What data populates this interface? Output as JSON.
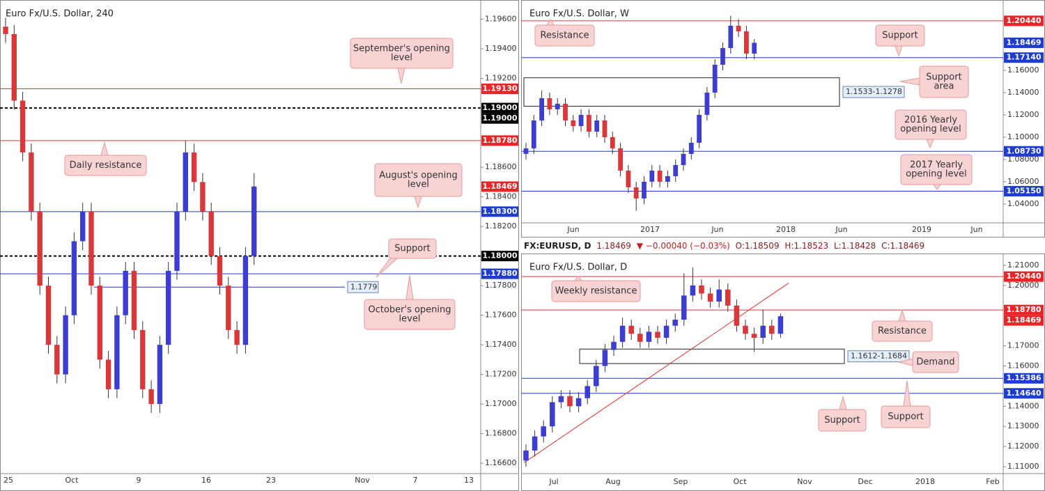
{
  "chart_data": [
    {
      "type": "candlestick",
      "title": "Euro Fx/U.S. Dollar, 240",
      "up_color": "#3d3dd1",
      "down_color": "#d9373a",
      "ylim": [
        1.1653,
        1.1973
      ],
      "yticks": [
        {
          "value": 1.196,
          "label": "1.19600"
        },
        {
          "value": 1.194,
          "label": "1.19400"
        },
        {
          "value": 1.192,
          "label": "1.19200"
        },
        {
          "value": 1.186,
          "label": "1.18600"
        },
        {
          "value": 1.184,
          "label": "1.18400"
        },
        {
          "value": 1.182,
          "label": "1.18200"
        },
        {
          "value": 1.178,
          "label": "1.17800"
        },
        {
          "value": 1.176,
          "label": "1.17600"
        },
        {
          "value": 1.174,
          "label": "1.17400"
        },
        {
          "value": 1.172,
          "label": "1.17200"
        },
        {
          "value": 1.17,
          "label": "1.17000"
        },
        {
          "value": 1.168,
          "label": "1.16800"
        },
        {
          "value": 1.166,
          "label": "1.16600"
        }
      ],
      "xlabels": [
        "25",
        "Oct",
        "9",
        "16",
        "23",
        "Nov",
        "7",
        "13"
      ],
      "ohlc": [
        [
          1.1955,
          1.1961,
          1.1944,
          1.195
        ],
        [
          1.195,
          1.1956,
          1.1899,
          1.1905
        ],
        [
          1.1905,
          1.1911,
          1.1864,
          1.187
        ],
        [
          1.187,
          1.1876,
          1.1824,
          1.183
        ],
        [
          1.183,
          1.1836,
          1.1774,
          1.178
        ],
        [
          1.178,
          1.1786,
          1.1734,
          1.174
        ],
        [
          1.174,
          1.1746,
          1.1714,
          1.172
        ],
        [
          1.172,
          1.1766,
          1.1714,
          1.176
        ],
        [
          1.176,
          1.1816,
          1.1754,
          1.181
        ],
        [
          1.181,
          1.1836,
          1.1804,
          1.183
        ],
        [
          1.183,
          1.1836,
          1.1774,
          1.178
        ],
        [
          1.178,
          1.1786,
          1.1724,
          1.173
        ],
        [
          1.173,
          1.1736,
          1.1704,
          1.171
        ],
        [
          1.171,
          1.1766,
          1.1704,
          1.176
        ],
        [
          1.176,
          1.1796,
          1.1754,
          1.179
        ],
        [
          1.179,
          1.1796,
          1.1744,
          1.175
        ],
        [
          1.175,
          1.1756,
          1.1704,
          1.171
        ],
        [
          1.171,
          1.1716,
          1.1694,
          1.17
        ],
        [
          1.17,
          1.1746,
          1.1694,
          1.174
        ],
        [
          1.174,
          1.1796,
          1.1734,
          1.179
        ],
        [
          1.179,
          1.1836,
          1.1784,
          1.183
        ],
        [
          1.183,
          1.1878,
          1.1824,
          1.187
        ],
        [
          1.187,
          1.1876,
          1.1844,
          1.185
        ],
        [
          1.185,
          1.1856,
          1.1824,
          1.183
        ],
        [
          1.183,
          1.1836,
          1.1794,
          1.18
        ],
        [
          1.18,
          1.1806,
          1.1774,
          1.178
        ],
        [
          1.178,
          1.1786,
          1.1744,
          1.175
        ],
        [
          1.175,
          1.1756,
          1.1734,
          1.174
        ],
        [
          1.174,
          1.1806,
          1.1734,
          1.18
        ],
        [
          1.18,
          1.1856,
          1.1794,
          1.1847
        ]
      ],
      "levels": [
        {
          "value": 1.1913,
          "color": "#d9373a"
        },
        {
          "value": 1.19,
          "color": "#000000",
          "dashed": true
        },
        {
          "value": 1.1878,
          "color": "#d9373a"
        },
        {
          "value": 1.183,
          "color": "#2336c8"
        },
        {
          "value": 1.18,
          "color": "#000000",
          "dashed": true
        },
        {
          "value": 1.1788,
          "color": "#2336c8"
        }
      ],
      "segments": [
        {
          "value": 1.1779,
          "label": "1.1779",
          "color": "#2336c8"
        }
      ],
      "tags": [
        {
          "value": 1.1913,
          "label": "1.19130",
          "color": "#e8262a"
        },
        {
          "value": 1.19,
          "label": "1.19000",
          "color": "#000000"
        },
        {
          "value": 1.19,
          "label": "1.19000",
          "color": "#000000"
        },
        {
          "value": 1.1878,
          "label": "1.18780",
          "color": "#e8262a"
        },
        {
          "value": 1.18469,
          "label": "1.18469",
          "color": "#e8262a"
        },
        {
          "value": 1.183,
          "label": "1.18300",
          "color": "#1e3cd0"
        },
        {
          "value": 1.18,
          "label": "1.18000",
          "color": "#000000"
        },
        {
          "value": 1.1788,
          "label": "1.17880",
          "color": "#1e3cd0"
        }
      ],
      "annotations": [
        {
          "lines": [
            "September's opening",
            "level"
          ]
        },
        {
          "lines": [
            "Daily resistance"
          ]
        },
        {
          "lines": [
            "August's opening",
            "level"
          ]
        },
        {
          "lines": [
            "Support"
          ]
        },
        {
          "lines": [
            "October's opening",
            "level"
          ]
        }
      ]
    },
    {
      "type": "candlestick",
      "title": "Euro Fx/U.S. Dollar, W",
      "up_color": "#3d3dd1",
      "down_color": "#d9373a",
      "ylim": [
        1.0231,
        1.2231
      ],
      "yticks": [
        {
          "value": 1.16,
          "label": "1.16000"
        },
        {
          "value": 1.14,
          "label": "1.14000"
        },
        {
          "value": 1.12,
          "label": "1.12000"
        },
        {
          "value": 1.1,
          "label": "1.10000"
        },
        {
          "value": 1.08,
          "label": "1.08000"
        },
        {
          "value": 1.06,
          "label": "1.06000"
        },
        {
          "value": 1.04,
          "label": "1.04000"
        }
      ],
      "xlabels": [
        "Jun",
        "2017",
        "Jun",
        "2018",
        "Jun",
        "2019",
        "Jun"
      ],
      "ohlc": [
        [
          1.085,
          1.095,
          1.08,
          1.09
        ],
        [
          1.09,
          1.12,
          1.085,
          1.115
        ],
        [
          1.115,
          1.142,
          1.11,
          1.135
        ],
        [
          1.135,
          1.14,
          1.12,
          1.125
        ],
        [
          1.125,
          1.135,
          1.12,
          1.13
        ],
        [
          1.13,
          1.135,
          1.11,
          1.115
        ],
        [
          1.115,
          1.12,
          1.105,
          1.11
        ],
        [
          1.11,
          1.125,
          1.105,
          1.12
        ],
        [
          1.12,
          1.125,
          1.1,
          1.105
        ],
        [
          1.105,
          1.12,
          1.1,
          1.115
        ],
        [
          1.115,
          1.12,
          1.095,
          1.1
        ],
        [
          1.1,
          1.105,
          1.085,
          1.09
        ],
        [
          1.09,
          1.095,
          1.065,
          1.07
        ],
        [
          1.07,
          1.075,
          1.05,
          1.055
        ],
        [
          1.055,
          1.06,
          1.034,
          1.045
        ],
        [
          1.045,
          1.065,
          1.04,
          1.06
        ],
        [
          1.06,
          1.075,
          1.055,
          1.07
        ],
        [
          1.07,
          1.075,
          1.055,
          1.06
        ],
        [
          1.06,
          1.07,
          1.055,
          1.065
        ],
        [
          1.065,
          1.08,
          1.06,
          1.075
        ],
        [
          1.075,
          1.09,
          1.07,
          1.085
        ],
        [
          1.085,
          1.1,
          1.08,
          1.095
        ],
        [
          1.095,
          1.125,
          1.09,
          1.12
        ],
        [
          1.12,
          1.145,
          1.115,
          1.14
        ],
        [
          1.14,
          1.17,
          1.135,
          1.165
        ],
        [
          1.165,
          1.185,
          1.16,
          1.18
        ],
        [
          1.18,
          1.209,
          1.175,
          1.2
        ],
        [
          1.2,
          1.206,
          1.19,
          1.195
        ],
        [
          1.195,
          1.2,
          1.17,
          1.175
        ],
        [
          1.175,
          1.188,
          1.17,
          1.1847
        ]
      ],
      "levels": [
        {
          "value": 1.2044,
          "color": "#d9373a"
        },
        {
          "value": 1.1714,
          "color": "#2336c8"
        },
        {
          "value": 1.0873,
          "color": "#2336c8"
        },
        {
          "value": 1.0515,
          "color": "#2336c8"
        }
      ],
      "zones": [
        {
          "top": 1.1533,
          "bottom": 1.1278,
          "label": "1.1533-1.1278"
        }
      ],
      "tags": [
        {
          "value": 1.2044,
          "label": "1.20440",
          "color": "#e8262a"
        },
        {
          "value": 1.18469,
          "label": "1.18469",
          "color": "#1e3cd0"
        },
        {
          "value": 1.1714,
          "label": "1.17140",
          "color": "#1e3cd0"
        },
        {
          "value": 1.0873,
          "label": "1.08730",
          "color": "#1e3cd0"
        },
        {
          "value": 1.0515,
          "label": "1.05150",
          "color": "#1e3cd0"
        }
      ],
      "annotations": [
        {
          "lines": [
            "Resistance"
          ]
        },
        {
          "lines": [
            "Support"
          ]
        },
        {
          "lines": [
            "Support",
            "area"
          ]
        },
        {
          "lines": [
            "2016 Yearly",
            "opening level"
          ]
        },
        {
          "lines": [
            "2017 Yearly",
            "opening level"
          ]
        }
      ]
    },
    {
      "type": "candlestick",
      "title": "Euro Fx/U.S. Dollar, D",
      "up_color": "#3d3dd1",
      "down_color": "#d9373a",
      "ylim": [
        1.10654,
        1.2138
      ],
      "yticks": [
        {
          "value": 1.21,
          "label": "1.21000"
        },
        {
          "value": 1.2,
          "label": "1.20000"
        },
        {
          "value": 1.17,
          "label": "1.17000"
        },
        {
          "value": 1.16,
          "label": "1.16000"
        },
        {
          "value": 1.14,
          "label": "1.14000"
        },
        {
          "value": 1.13,
          "label": "1.13000"
        },
        {
          "value": 1.12,
          "label": "1.12000"
        },
        {
          "value": 1.11,
          "label": "1.11000"
        }
      ],
      "xlabels": [
        "Jul",
        "Aug",
        "Sep",
        "Oct",
        "Nov",
        "Dec",
        "2018",
        "Feb"
      ],
      "ohlc": [
        [
          1.113,
          1.121,
          1.11,
          1.118
        ],
        [
          1.118,
          1.128,
          1.115,
          1.125
        ],
        [
          1.125,
          1.133,
          1.122,
          1.13
        ],
        [
          1.13,
          1.145,
          1.127,
          1.142
        ],
        [
          1.142,
          1.148,
          1.139,
          1.145
        ],
        [
          1.145,
          1.148,
          1.137,
          1.14
        ],
        [
          1.14,
          1.147,
          1.137,
          1.144
        ],
        [
          1.144,
          1.153,
          1.141,
          1.15
        ],
        [
          1.15,
          1.163,
          1.147,
          1.16
        ],
        [
          1.16,
          1.171,
          1.157,
          1.168
        ],
        [
          1.168,
          1.175,
          1.165,
          1.172
        ],
        [
          1.172,
          1.184,
          1.169,
          1.18
        ],
        [
          1.18,
          1.183,
          1.173,
          1.176
        ],
        [
          1.176,
          1.179,
          1.169,
          1.172
        ],
        [
          1.172,
          1.18,
          1.169,
          1.177
        ],
        [
          1.177,
          1.18,
          1.171,
          1.174
        ],
        [
          1.174,
          1.183,
          1.171,
          1.18
        ],
        [
          1.18,
          1.186,
          1.177,
          1.183
        ],
        [
          1.183,
          1.206,
          1.18,
          1.195
        ],
        [
          1.195,
          1.209,
          1.192,
          1.2
        ],
        [
          1.2,
          1.203,
          1.193,
          1.196
        ],
        [
          1.196,
          1.199,
          1.189,
          1.192
        ],
        [
          1.192,
          1.203,
          1.189,
          1.198
        ],
        [
          1.198,
          1.201,
          1.187,
          1.19
        ],
        [
          1.19,
          1.193,
          1.177,
          1.18
        ],
        [
          1.18,
          1.183,
          1.173,
          1.176
        ],
        [
          1.176,
          1.179,
          1.167,
          1.174
        ],
        [
          1.174,
          1.188,
          1.171,
          1.18
        ],
        [
          1.18,
          1.183,
          1.173,
          1.176
        ],
        [
          1.176,
          1.186,
          1.174,
          1.1847
        ]
      ],
      "levels": [
        {
          "value": 1.2044,
          "color": "#d9373a"
        },
        {
          "value": 1.1878,
          "color": "#d9373a"
        },
        {
          "value": 1.15386,
          "color": "#2336c8"
        },
        {
          "value": 1.1464,
          "color": "#2336c8"
        }
      ],
      "zones": [
        {
          "top": 1.1684,
          "bottom": 1.1612,
          "label": "1.1612-1.1684"
        }
      ],
      "trendline": {
        "prices": [
          1.1119,
          1.2012
        ],
        "color": "#e03030"
      },
      "tags": [
        {
          "value": 1.2044,
          "label": "1.20440",
          "color": "#e8262a"
        },
        {
          "value": 1.1878,
          "label": "1.18780",
          "color": "#e8262a"
        },
        {
          "value": 1.18469,
          "label": "1.18469",
          "color": "#e8262a"
        },
        {
          "value": 1.15386,
          "label": "1.15386",
          "color": "#1e3cd0"
        },
        {
          "value": 1.1464,
          "label": "1.14640",
          "color": "#1e3cd0"
        }
      ],
      "annotations": [
        {
          "lines": [
            "Weekly resistance"
          ]
        },
        {
          "lines": [
            "Resistance"
          ]
        },
        {
          "lines": [
            "Demand"
          ]
        },
        {
          "lines": [
            "Support"
          ]
        },
        {
          "lines": [
            "Support"
          ]
        }
      ]
    }
  ],
  "header": {
    "symbol": "FX:EURUSD, D",
    "last": "1.18469",
    "change": "▼ −0.00040 (−0.03%)",
    "open": "O:1.18509",
    "high": "H:1.18523",
    "low": "L:1.18428",
    "close": "C:1.18469"
  }
}
